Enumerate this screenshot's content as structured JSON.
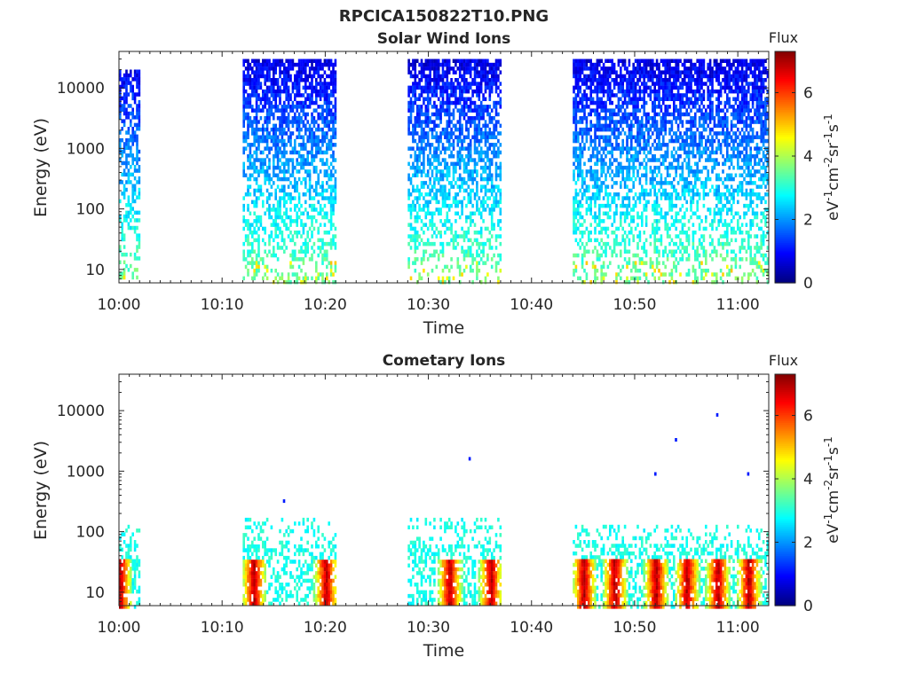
{
  "figure_title": "RPCICA150822T10.PNG",
  "chart_data": [
    {
      "type": "heatmap",
      "title": "Solar Wind Ions",
      "xlabel": "Time",
      "ylabel": "Energy (eV)",
      "x_range": [
        "10:00",
        "11:03"
      ],
      "y_scale": "log",
      "y_range": [
        6,
        40000
      ],
      "x_tick_labels": [
        "10:00",
        "10:10",
        "10:20",
        "10:30",
        "10:40",
        "10:50",
        "11:00"
      ],
      "y_tick_labels": [
        "10",
        "100",
        "1000",
        "10000"
      ],
      "colorbar": {
        "title": "Flux",
        "label": "eV-1cm-2sr-1s-1",
        "range": [
          0,
          7.3
        ],
        "tick_labels": [
          "0",
          "2",
          "4",
          "6"
        ],
        "colormap": "jet"
      },
      "data_blocks": [
        {
          "start": "10:00",
          "end": "10:02",
          "max_energy_eV": 20000
        },
        {
          "start": "10:12",
          "end": "10:21",
          "max_energy_eV": 30000
        },
        {
          "start": "10:28",
          "end": "10:37",
          "max_energy_eV": 30000
        },
        {
          "start": "10:44",
          "end": "11:03",
          "max_energy_eV": 30000
        }
      ],
      "grid": false
    },
    {
      "type": "heatmap",
      "title": "Cometary Ions",
      "xlabel": "Time",
      "ylabel": "Energy (eV)",
      "x_range": [
        "10:00",
        "11:03"
      ],
      "y_scale": "log",
      "y_range": [
        6,
        40000
      ],
      "x_tick_labels": [
        "10:00",
        "10:10",
        "10:20",
        "10:30",
        "10:40",
        "10:50",
        "11:00"
      ],
      "y_tick_labels": [
        "10",
        "100",
        "1000",
        "10000"
      ],
      "colorbar": {
        "title": "Flux",
        "label": "eV-1cm-2sr-1s-1",
        "range": [
          0,
          7.3
        ],
        "tick_labels": [
          "0",
          "2",
          "4",
          "6"
        ],
        "colormap": "jet"
      },
      "data_blocks": [
        {
          "start": "10:00",
          "end": "10:02",
          "max_energy_eV": 130
        },
        {
          "start": "10:12",
          "end": "10:21",
          "max_energy_eV": 170
        },
        {
          "start": "10:28",
          "end": "10:37",
          "max_energy_eV": 170
        },
        {
          "start": "10:44",
          "end": "11:03",
          "max_energy_eV": 130
        }
      ],
      "intensity_peaks_time": [
        "10:00",
        "10:13",
        "10:20",
        "10:32",
        "10:36",
        "10:45",
        "10:48",
        "10:52",
        "10:55",
        "10:58",
        "11:01"
      ],
      "scattered_high_energy_points": [
        {
          "time": "10:16",
          "energy_eV": 320
        },
        {
          "time": "10:34",
          "energy_eV": 1600
        },
        {
          "time": "10:52",
          "energy_eV": 900
        },
        {
          "time": "10:54",
          "energy_eV": 3300
        },
        {
          "time": "10:58",
          "energy_eV": 8500
        },
        {
          "time": "11:01",
          "energy_eV": 900
        }
      ],
      "grid": false
    }
  ]
}
